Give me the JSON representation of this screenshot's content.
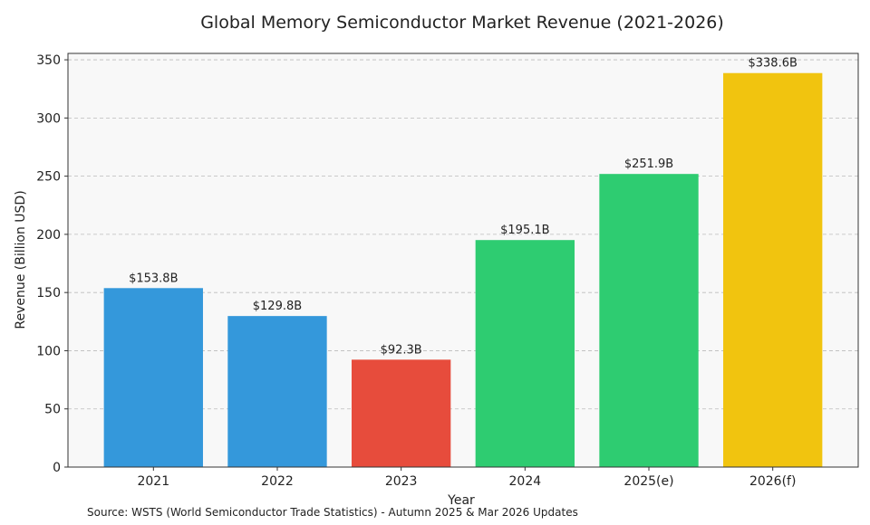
{
  "chart_data": {
    "type": "bar",
    "title": "Global Memory Semiconductor Market Revenue (2021-2026)",
    "xlabel": "Year",
    "ylabel": "Revenue (Billion USD)",
    "categories": [
      "2021",
      "2022",
      "2023",
      "2024",
      "2025(e)",
      "2026(f)"
    ],
    "values": [
      153.8,
      129.8,
      92.3,
      195.1,
      251.9,
      338.6
    ],
    "data_labels": [
      "$153.8B",
      "$129.8B",
      "$92.3B",
      "$195.1B",
      "$251.9B",
      "$338.6B"
    ],
    "bar_colors": [
      "#3498db",
      "#3498db",
      "#e74c3c",
      "#2ecc71",
      "#2ecc71",
      "#f1c40f"
    ],
    "ylim": [
      0,
      355.5
    ],
    "yticks": [
      0,
      50,
      100,
      150,
      200,
      250,
      300,
      350
    ],
    "grid": "y dashed",
    "legend": "none",
    "source_note": "Source: WSTS (World Semiconductor Trade Statistics) - Autumn 2025 & Mar 2026 Updates"
  }
}
